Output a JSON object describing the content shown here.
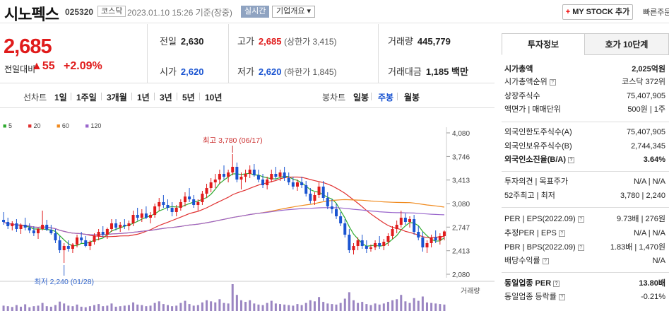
{
  "header": {
    "name": "시노펙스",
    "code": "025320",
    "market": "코스닥",
    "timestamp": "2023.01.10 15:26 기준(장중)",
    "realtime": "실시간",
    "overview": "기업개요",
    "mystock_plus": "+",
    "mystock": "MY STOCK 추가",
    "quick": "빠른주문"
  },
  "price": {
    "current": "2,685",
    "diff_label": "전일대비",
    "diff_value": "▲55",
    "diff_pct": "+2.09%",
    "prev_close_label": "전일",
    "prev_close": "2,630",
    "high_label": "고가",
    "high": "2,685",
    "high_limit": "(상한가 3,415)",
    "volume_label": "거래량",
    "volume": "445,779",
    "open_label": "시가",
    "open": "2,620",
    "low_label": "저가",
    "low": "2,620",
    "low_limit": "(하한가 1,845)",
    "amount_label": "거래대금",
    "amount": "1,185 백만"
  },
  "period": {
    "line_label": "선차트",
    "line_options": [
      "1일",
      "1주일",
      "3개월",
      "1년",
      "3년",
      "5년",
      "10년"
    ],
    "candle_label": "봉차트",
    "candle_options": [
      "일봉",
      "주봉",
      "월봉"
    ],
    "active_candle": "주봉"
  },
  "colors": {
    "up": "#e01b1b",
    "down": "#1a54d1",
    "ma5": "#2eaa2e",
    "ma20": "#e03030",
    "ma60": "#f08a1e",
    "ma120": "#9966cc"
  },
  "chart_data": {
    "type": "candlestick",
    "interval": "weekly",
    "legend": [
      "5",
      "20",
      "60",
      "120"
    ],
    "y_ticks": [
      4080,
      3746,
      3413,
      3080,
      2747,
      2413,
      2080
    ],
    "ylim": [
      2080,
      4080
    ],
    "volume_label": "거래량",
    "annotations": {
      "high": "최고 3,780 (06/17)",
      "low": "최저 2,240 (01/28)"
    },
    "ohlc": [
      [
        2850,
        2960,
        2780,
        2820
      ],
      [
        2820,
        2880,
        2720,
        2760
      ],
      [
        2760,
        2830,
        2700,
        2800
      ],
      [
        2800,
        2860,
        2680,
        2720
      ],
      [
        2720,
        2800,
        2650,
        2780
      ],
      [
        2780,
        2880,
        2700,
        2740
      ],
      [
        2740,
        2800,
        2660,
        2700
      ],
      [
        2700,
        2760,
        2620,
        2660
      ],
      [
        2660,
        2740,
        2580,
        2720
      ],
      [
        2720,
        2980,
        2700,
        2780
      ],
      [
        2780,
        2850,
        2690,
        2710
      ],
      [
        2710,
        2780,
        2640,
        2660
      ],
      [
        2660,
        2720,
        2520,
        2560
      ],
      [
        2560,
        2620,
        2380,
        2420
      ],
      [
        2420,
        2520,
        2240,
        2480
      ],
      [
        2480,
        2560,
        2400,
        2440
      ],
      [
        2440,
        2520,
        2380,
        2500
      ],
      [
        2500,
        2640,
        2460,
        2600
      ],
      [
        2600,
        2680,
        2520,
        2560
      ],
      [
        2560,
        2620,
        2460,
        2480
      ],
      [
        2480,
        2560,
        2420,
        2540
      ],
      [
        2540,
        2660,
        2500,
        2620
      ],
      [
        2620,
        2720,
        2560,
        2680
      ],
      [
        2680,
        2760,
        2600,
        2640
      ],
      [
        2640,
        2740,
        2580,
        2720
      ],
      [
        2720,
        2860,
        2680,
        2800
      ],
      [
        2800,
        2860,
        2700,
        2740
      ],
      [
        2740,
        2820,
        2680,
        2780
      ],
      [
        2780,
        2860,
        2720,
        2760
      ],
      [
        2760,
        2840,
        2700,
        2800
      ],
      [
        2800,
        2980,
        2760,
        2920
      ],
      [
        2920,
        3020,
        2840,
        2880
      ],
      [
        2880,
        3000,
        2820,
        2940
      ],
      [
        2940,
        3040,
        2860,
        2880
      ],
      [
        2880,
        2960,
        2800,
        2920
      ],
      [
        2920,
        3080,
        2880,
        3040
      ],
      [
        3040,
        3160,
        2980,
        3100
      ],
      [
        3100,
        3200,
        3020,
        3060
      ],
      [
        3060,
        3140,
        2980,
        3020
      ],
      [
        3020,
        3100,
        2900,
        2960
      ],
      [
        2960,
        3060,
        2900,
        3020
      ],
      [
        3020,
        3140,
        2980,
        3100
      ],
      [
        3100,
        3240,
        3040,
        3180
      ],
      [
        3180,
        3300,
        3100,
        3140
      ],
      [
        3140,
        3200,
        3020,
        3060
      ],
      [
        3060,
        3140,
        2980,
        3100
      ],
      [
        3100,
        3260,
        3060,
        3220
      ],
      [
        3220,
        3360,
        3160,
        3300
      ],
      [
        3300,
        3440,
        3240,
        3380
      ],
      [
        3380,
        3500,
        3300,
        3420
      ],
      [
        3420,
        3560,
        3360,
        3500
      ],
      [
        3500,
        3620,
        3420,
        3460
      ],
      [
        3460,
        3560,
        3380,
        3520
      ],
      [
        3520,
        3780,
        3480,
        3600
      ],
      [
        3600,
        3660,
        3380,
        3420
      ],
      [
        3420,
        3520,
        3280,
        3460
      ],
      [
        3460,
        3560,
        3380,
        3500
      ],
      [
        3500,
        3620,
        3440,
        3560
      ],
      [
        3560,
        3640,
        3460,
        3480
      ],
      [
        3480,
        3560,
        3380,
        3420
      ],
      [
        3420,
        3500,
        3300,
        3340
      ],
      [
        3340,
        3460,
        3280,
        3420
      ],
      [
        3420,
        3560,
        3380,
        3500
      ],
      [
        3500,
        3600,
        3420,
        3460
      ],
      [
        3460,
        3560,
        3400,
        3520
      ],
      [
        3520,
        3600,
        3400,
        3440
      ],
      [
        3440,
        3520,
        3340,
        3380
      ],
      [
        3380,
        3460,
        3280,
        3320
      ],
      [
        3320,
        3420,
        3260,
        3380
      ],
      [
        3380,
        3460,
        3300,
        3340
      ],
      [
        3340,
        3400,
        3180,
        3220
      ],
      [
        3220,
        3300,
        3080,
        3120
      ],
      [
        3120,
        3240,
        3060,
        3200
      ],
      [
        3200,
        3380,
        3160,
        3320
      ],
      [
        3320,
        3400,
        3120,
        3160
      ],
      [
        3160,
        3240,
        3000,
        3040
      ],
      [
        3040,
        3140,
        2940,
        3000
      ],
      [
        3000,
        3080,
        2860,
        2900
      ],
      [
        2900,
        2960,
        2760,
        2800
      ],
      [
        2800,
        2860,
        2600,
        2640
      ],
      [
        2640,
        2720,
        2380,
        2420
      ],
      [
        2420,
        2520,
        2360,
        2480
      ],
      [
        2480,
        2600,
        2420,
        2560
      ],
      [
        2560,
        2640,
        2440,
        2480
      ],
      [
        2480,
        2560,
        2380,
        2440
      ],
      [
        2440,
        2500,
        2400,
        2460
      ],
      [
        2460,
        2560,
        2420,
        2520
      ],
      [
        2520,
        2620,
        2440,
        2480
      ],
      [
        2480,
        2580,
        2420,
        2540
      ],
      [
        2540,
        2660,
        2480,
        2620
      ],
      [
        2620,
        2760,
        2580,
        2720
      ],
      [
        2720,
        2840,
        2660,
        2780
      ],
      [
        2780,
        2980,
        2740,
        2880
      ],
      [
        2880,
        2940,
        2780,
        2820
      ],
      [
        2820,
        2900,
        2740,
        2860
      ],
      [
        2860,
        2920,
        2640,
        2680
      ],
      [
        2680,
        2760,
        2560,
        2600
      ],
      [
        2600,
        2680,
        2400,
        2460
      ],
      [
        2460,
        2560,
        2380,
        2520
      ],
      [
        2520,
        2640,
        2460,
        2600
      ],
      [
        2600,
        2700,
        2520,
        2560
      ],
      [
        2560,
        2660,
        2500,
        2620
      ],
      [
        2620,
        2700,
        2560,
        2685
      ]
    ],
    "volume": [
      20,
      18,
      15,
      22,
      16,
      25,
      14,
      18,
      20,
      30,
      18,
      16,
      22,
      35,
      28,
      20,
      18,
      24,
      16,
      14,
      18,
      22,
      26,
      18,
      20,
      28,
      16,
      18,
      20,
      22,
      32,
      24,
      22,
      18,
      20,
      30,
      36,
      26,
      22,
      18,
      20,
      30,
      38,
      26,
      20,
      22,
      32,
      40,
      36,
      32,
      44,
      30,
      28,
      100,
      60,
      40,
      34,
      40,
      28,
      24,
      22,
      30,
      38,
      28,
      26,
      24,
      22,
      20,
      26,
      22,
      30,
      40,
      36,
      52,
      34,
      28,
      26,
      24,
      30,
      46,
      70,
      40,
      30,
      34,
      26,
      22,
      28,
      24,
      28,
      34,
      40,
      44,
      60,
      36,
      30,
      48,
      38,
      54,
      32,
      30,
      28,
      26,
      24
    ]
  },
  "sidebar": {
    "tabs": [
      "투자정보",
      "호가 10단계"
    ],
    "market_cap_label": "시가총액",
    "market_cap": "2,025억원",
    "market_cap_rank_label": "시가총액순위",
    "market_cap_rank": "코스닥 372위",
    "shares_label": "상장주식수",
    "shares": "75,407,905",
    "par_label": "액면가",
    "unit_label": "매매단위",
    "par_unit": "500원 | 1주",
    "foreign_limit_label": "외국인한도주식수(A)",
    "foreign_limit": "75,407,905",
    "foreign_hold_label": "외국인보유주식수(B)",
    "foreign_hold": "2,744,345",
    "foreign_ratio_label": "외국인소진율(B/A)",
    "foreign_ratio": "3.64%",
    "opinion_label": "투자의견",
    "target_label": "목표주가",
    "opinion_target": "N/A | N/A",
    "w52_label": "52주최고",
    "w52_low_label": "최저",
    "w52": "3,780 | 2,240",
    "per_label": "PER",
    "eps_label": "EPS(2022.09)",
    "per_eps": "9.73배 | 276원",
    "est_per_label": "추정PER",
    "est_eps_label": "EPS",
    "est_per_eps": "N/A | N/A",
    "pbr_label": "PBR",
    "bps_label": "BPS(2022.09)",
    "pbr_bps": "1.83배 | 1,470원",
    "div_label": "배당수익률",
    "div": "N/A",
    "ind_per_label": "동일업종 PER",
    "ind_per": "13.80배",
    "ind_rate_label": "동일업종 등락률",
    "ind_rate": "-0.21%"
  }
}
